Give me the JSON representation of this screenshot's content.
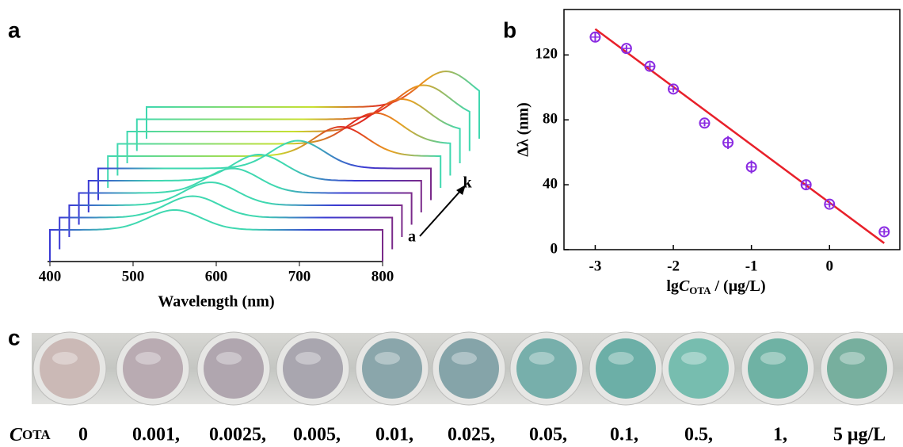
{
  "panel_labels": [
    "a",
    "b",
    "c"
  ],
  "chart_data": [
    {
      "type": "waterfall",
      "xlabel": "Wavelength (nm)",
      "xlim": [
        400,
        800
      ],
      "xticks": [
        400,
        500,
        600,
        700,
        800
      ],
      "peaks": [
        550,
        560,
        570,
        585,
        605,
        640,
        680,
        710,
        730,
        745,
        760
      ],
      "annotations": [
        "a",
        "k"
      ]
    },
    {
      "type": "scatter",
      "ylabel": "Δλ (nm)",
      "xlabel_parts": [
        "lg",
        "C",
        "OTA",
        " / (μg/L)"
      ],
      "xlim": [
        -3.4,
        0.9
      ],
      "ylim": [
        0,
        148
      ],
      "xticks": [
        -3,
        -2,
        -1,
        0
      ],
      "yticks": [
        0,
        40,
        80,
        120
      ],
      "color": "#8a2be2",
      "x": [
        -3,
        -2.6,
        -2.3,
        -2,
        -1.6,
        -1.3,
        -1,
        -0.3,
        0,
        0.7
      ],
      "values": [
        131,
        124,
        113,
        99,
        78,
        66,
        51,
        40,
        28,
        11
      ],
      "errors": [
        3,
        2,
        2,
        2,
        2,
        4,
        4,
        3,
        2,
        2
      ],
      "fit": {
        "x": [
          -3,
          0.7
        ],
        "values": [
          136,
          4
        ],
        "color": "#e8202a"
      }
    }
  ],
  "wells": {
    "label_c": "C",
    "label_sub": "OTA",
    "concentrations": [
      "0",
      "0.001,",
      "0.0025,",
      "0.005,",
      "0.01,",
      "0.025,",
      "0.05,",
      "0.1,",
      "0.5,",
      "1,",
      "5 μg/L"
    ]
  }
}
